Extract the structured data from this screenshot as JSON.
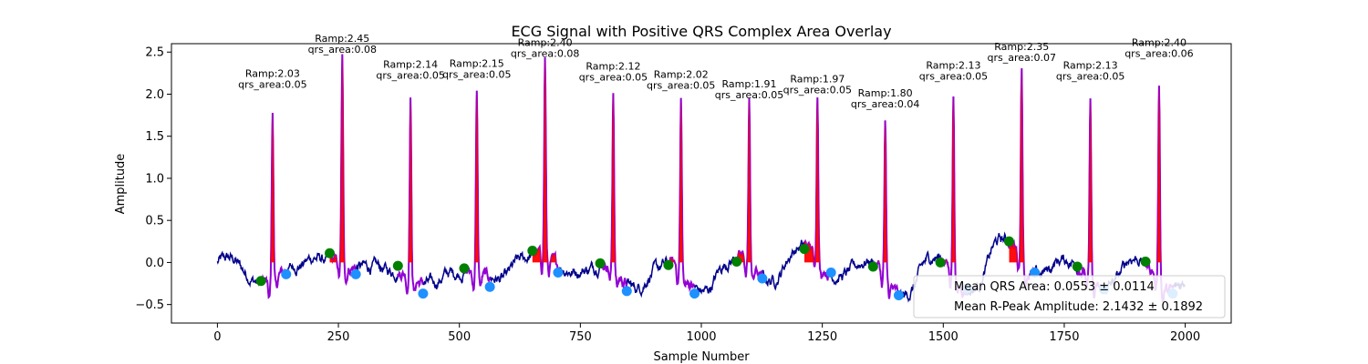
{
  "chart_data": {
    "type": "line",
    "title": "ECG Signal with Positive QRS Complex Area Overlay",
    "xlabel": "Sample Number",
    "ylabel": "Amplitude",
    "xlim": [
      -95,
      2095
    ],
    "ylim": [
      -0.72,
      2.6
    ],
    "xticks": [
      0,
      250,
      500,
      750,
      1000,
      1250,
      1500,
      1750,
      2000
    ],
    "xtick_labels": [
      "0",
      "250",
      "500",
      "750",
      "1000",
      "1250",
      "1500",
      "1750",
      "2000"
    ],
    "yticks": [
      -0.5,
      0.0,
      0.5,
      1.0,
      1.5,
      2.0,
      2.5
    ],
    "ytick_labels": [
      "−0.5",
      "0.0",
      "0.5",
      "1.0",
      "1.5",
      "2.0",
      "2.5"
    ],
    "grid": false,
    "colors": {
      "signal": "#00008b",
      "qrs_segment": "#9400d3",
      "qrs_area_fill": "#ff0000",
      "onset_marker": "#008000",
      "offset_marker": "#1e90ff"
    },
    "beats": [
      {
        "r": 114,
        "amp": 2.03,
        "label_amp": "Ramp:2.03",
        "label_area": "qrs_area:0.05",
        "onset": [
          90,
          -0.22
        ],
        "offset": [
          142,
          -0.14
        ]
      },
      {
        "r": 258,
        "amp": 2.45,
        "label_amp": "Ramp:2.45",
        "label_area": "qrs_area:0.08",
        "onset": [
          232,
          0.11
        ],
        "offset": [
          286,
          -0.14
        ]
      },
      {
        "r": 399,
        "amp": 2.14,
        "label_amp": "Ramp:2.14",
        "label_area": "qrs_area:0.05",
        "onset": [
          373,
          -0.04
        ],
        "offset": [
          425,
          -0.37
        ]
      },
      {
        "r": 536,
        "amp": 2.15,
        "label_amp": "Ramp:2.15",
        "label_area": "qrs_area:0.05",
        "onset": [
          510,
          -0.07
        ],
        "offset": [
          563,
          -0.29
        ]
      },
      {
        "r": 677,
        "amp": 2.4,
        "label_amp": "Ramp:2.40",
        "label_area": "qrs_area:0.08",
        "onset": [
          651,
          0.14
        ],
        "offset": [
          704,
          -0.12
        ]
      },
      {
        "r": 818,
        "amp": 2.12,
        "label_amp": "Ramp:2.12",
        "label_area": "qrs_area:0.05",
        "onset": [
          791,
          -0.01
        ],
        "offset": [
          846,
          -0.34
        ]
      },
      {
        "r": 958,
        "amp": 2.02,
        "label_amp": "Ramp:2.02",
        "label_area": "qrs_area:0.05",
        "onset": [
          932,
          -0.03
        ],
        "offset": [
          986,
          -0.37
        ]
      },
      {
        "r": 1099,
        "amp": 1.91,
        "label_amp": "Ramp:1.91",
        "label_area": "qrs_area:0.05",
        "onset": [
          1073,
          0.01
        ],
        "offset": [
          1126,
          -0.19
        ]
      },
      {
        "r": 1240,
        "amp": 1.97,
        "label_amp": "Ramp:1.97",
        "label_area": "qrs_area:0.05",
        "onset": [
          1213,
          0.16
        ],
        "offset": [
          1268,
          -0.12
        ]
      },
      {
        "r": 1380,
        "amp": 1.8,
        "label_amp": "Ramp:1.80",
        "label_area": "qrs_area:0.04",
        "onset": [
          1355,
          -0.05
        ],
        "offset": [
          1408,
          -0.39
        ]
      },
      {
        "r": 1521,
        "amp": 2.13,
        "label_amp": "Ramp:2.13",
        "label_area": "qrs_area:0.05",
        "onset": [
          1494,
          0.0
        ],
        "offset": [
          1549,
          -0.31
        ]
      },
      {
        "r": 1662,
        "amp": 2.35,
        "label_amp": "Ramp:2.35",
        "label_area": "qrs_area:0.07",
        "onset": [
          1636,
          0.25
        ],
        "offset": [
          1689,
          -0.12
        ]
      },
      {
        "r": 1804,
        "amp": 2.13,
        "label_amp": "Ramp:2.13",
        "label_area": "qrs_area:0.05",
        "onset": [
          1777,
          -0.05
        ],
        "offset": [
          1832,
          -0.32
        ]
      },
      {
        "r": 1946,
        "amp": 2.4,
        "label_amp": "Ramp:2.40",
        "label_area": "qrs_area:0.06",
        "onset": [
          1918,
          0.01
        ],
        "offset": [
          1974,
          -0.37
        ]
      }
    ],
    "legend": {
      "location": "lower right",
      "entries": [
        "Mean QRS Area: 0.0553 ± 0.0114",
        "Mean R-Peak Amplitude: 2.1432 ± 0.1892"
      ]
    }
  }
}
